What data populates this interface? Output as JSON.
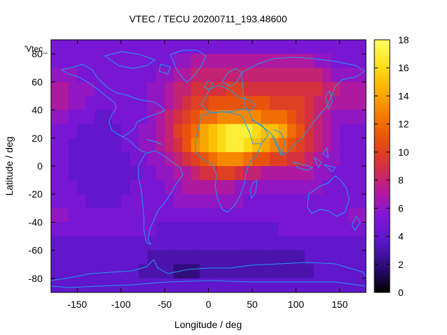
{
  "chart_data": {
    "type": "heatmap",
    "title": "VTEC / TECU 20200711_193.48600",
    "xlabel": "Longitude / deg",
    "ylabel": "Latitude / deg",
    "series_label": "'Vtec_",
    "xlim": [
      -180,
      180
    ],
    "ylim": [
      -90,
      90
    ],
    "xticks": [
      -150,
      -100,
      -50,
      0,
      50,
      100,
      150
    ],
    "yticks": [
      -80,
      -60,
      -40,
      -20,
      0,
      20,
      40,
      60,
      80
    ],
    "colorbar": {
      "min": 0,
      "max": 18,
      "ticks": [
        0,
        2,
        4,
        6,
        8,
        10,
        12,
        14,
        16,
        18
      ],
      "palette": [
        "#000000",
        "#2c0b74",
        "#5a17c8",
        "#8016d8",
        "#b4199a",
        "#d43040",
        "#e84d0e",
        "#f57d00",
        "#fbb000",
        "#ffe01a",
        "#ffff60"
      ]
    },
    "grid": {
      "lon_step": 10,
      "lat_step": 10,
      "note": "rows from lat 85 down to -85, cols from lon -175 to 175; VTEC in TECU",
      "values": [
        [
          5,
          5,
          5,
          5,
          5,
          5,
          5,
          5,
          5,
          5,
          5,
          5,
          5,
          5,
          5,
          5,
          5,
          5,
          5,
          5,
          5,
          5,
          5,
          5,
          5,
          5,
          5,
          5,
          5,
          5,
          5,
          5,
          5,
          5,
          5,
          5
        ],
        [
          5,
          5,
          5,
          5,
          5,
          5,
          5,
          5,
          5,
          5,
          5,
          5,
          5,
          5,
          6,
          6,
          7,
          7,
          7,
          7,
          7,
          7,
          7,
          7,
          7,
          7,
          7,
          7,
          7,
          7,
          6,
          6,
          5,
          5,
          5,
          5
        ],
        [
          6,
          6,
          6,
          5,
          5,
          5,
          5,
          5,
          5,
          5,
          5,
          5,
          6,
          6,
          7,
          7,
          8,
          8,
          8,
          8,
          8,
          8,
          8,
          8,
          8,
          8,
          8,
          8,
          8,
          8,
          8,
          7,
          6,
          6,
          6,
          6
        ],
        [
          7,
          7,
          6,
          6,
          6,
          5,
          5,
          5,
          5,
          5,
          5,
          6,
          6,
          7,
          8,
          8,
          9,
          9,
          9,
          9,
          10,
          10,
          9,
          9,
          9,
          9,
          9,
          9,
          9,
          9,
          9,
          8,
          8,
          7,
          7,
          7
        ],
        [
          7,
          7,
          6,
          6,
          5,
          5,
          5,
          5,
          5,
          5,
          5,
          6,
          6,
          7,
          8,
          9,
          10,
          10,
          11,
          11,
          11,
          11,
          11,
          11,
          11,
          10,
          10,
          10,
          10,
          9,
          8,
          8,
          7,
          7,
          7,
          7
        ],
        [
          6,
          6,
          5,
          5,
          5,
          4,
          4,
          5,
          5,
          5,
          5,
          6,
          7,
          8,
          9,
          10,
          11,
          12,
          12,
          13,
          13,
          13,
          13,
          13,
          12,
          12,
          12,
          11,
          10,
          9,
          8,
          7,
          6,
          6,
          6,
          6
        ],
        [
          5,
          5,
          5,
          4,
          4,
          4,
          4,
          4,
          5,
          5,
          6,
          6,
          7,
          8,
          10,
          11,
          12,
          14,
          15,
          16,
          17,
          17,
          17,
          16,
          15,
          15,
          14,
          12,
          11,
          9,
          8,
          7,
          6,
          5,
          5,
          5
        ],
        [
          5,
          5,
          4,
          4,
          4,
          4,
          4,
          4,
          5,
          5,
          6,
          6,
          7,
          8,
          9,
          11,
          13,
          14,
          15,
          16,
          17,
          17,
          16,
          15,
          14,
          13,
          12,
          11,
          10,
          9,
          8,
          7,
          6,
          5,
          5,
          5
        ],
        [
          5,
          5,
          4,
          4,
          4,
          4,
          4,
          4,
          4,
          5,
          5,
          6,
          6,
          7,
          8,
          9,
          10,
          11,
          12,
          13,
          13,
          13,
          12,
          11,
          11,
          10,
          10,
          9,
          9,
          8,
          7,
          6,
          6,
          5,
          5,
          5
        ],
        [
          5,
          5,
          4,
          4,
          4,
          4,
          4,
          4,
          4,
          4,
          5,
          5,
          6,
          6,
          7,
          7,
          8,
          9,
          9,
          10,
          10,
          9,
          8,
          8,
          7,
          7,
          7,
          7,
          7,
          7,
          6,
          6,
          5,
          5,
          5,
          5
        ],
        [
          5,
          5,
          5,
          4,
          4,
          4,
          4,
          4,
          4,
          5,
          5,
          5,
          5,
          6,
          6,
          7,
          7,
          7,
          7,
          7,
          7,
          6,
          6,
          6,
          6,
          6,
          6,
          6,
          6,
          6,
          6,
          5,
          5,
          5,
          5,
          5
        ],
        [
          5,
          5,
          5,
          5,
          4,
          4,
          4,
          4,
          5,
          5,
          5,
          5,
          5,
          5,
          6,
          6,
          6,
          6,
          6,
          6,
          6,
          6,
          5,
          5,
          5,
          5,
          5,
          5,
          5,
          5,
          5,
          5,
          5,
          5,
          5,
          5
        ],
        [
          6,
          6,
          5,
          5,
          5,
          5,
          5,
          5,
          5,
          5,
          5,
          5,
          5,
          5,
          5,
          5,
          5,
          5,
          5,
          5,
          5,
          5,
          5,
          5,
          5,
          5,
          5,
          5,
          5,
          5,
          5,
          5,
          5,
          5,
          6,
          6
        ],
        [
          5,
          5,
          5,
          5,
          5,
          5,
          5,
          5,
          5,
          5,
          5,
          5,
          4,
          4,
          4,
          4,
          4,
          4,
          4,
          4,
          4,
          4,
          4,
          4,
          4,
          4,
          5,
          5,
          5,
          5,
          5,
          5,
          5,
          5,
          5,
          5
        ],
        [
          4,
          4,
          4,
          4,
          4,
          4,
          4,
          4,
          4,
          4,
          4,
          4,
          4,
          4,
          4,
          4,
          4,
          4,
          4,
          4,
          4,
          4,
          4,
          4,
          4,
          4,
          4,
          4,
          4,
          4,
          4,
          4,
          4,
          4,
          4,
          4
        ],
        [
          4,
          4,
          4,
          4,
          4,
          4,
          4,
          4,
          4,
          4,
          4,
          3,
          3,
          3,
          3,
          3,
          3,
          3,
          3,
          3,
          3,
          3,
          3,
          3,
          3,
          3,
          3,
          3,
          3,
          4,
          4,
          4,
          4,
          4,
          4,
          4
        ],
        [
          4,
          4,
          4,
          4,
          4,
          4,
          4,
          4,
          4,
          4,
          3,
          3,
          3,
          3,
          2,
          2,
          2,
          3,
          3,
          3,
          3,
          3,
          3,
          3,
          3,
          3,
          3,
          3,
          3,
          3,
          4,
          4,
          4,
          4,
          4,
          4
        ],
        [
          4,
          4,
          4,
          4,
          4,
          4,
          4,
          4,
          4,
          4,
          4,
          4,
          4,
          4,
          4,
          4,
          4,
          4,
          4,
          4,
          4,
          4,
          4,
          4,
          4,
          4,
          4,
          4,
          4,
          4,
          4,
          4,
          4,
          4,
          4,
          4
        ]
      ]
    }
  }
}
